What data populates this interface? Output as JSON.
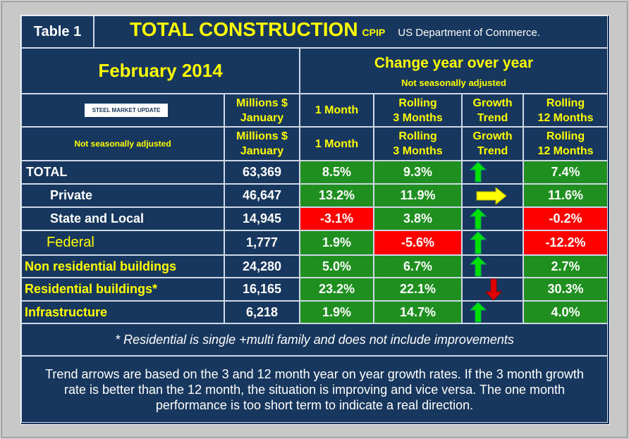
{
  "header": {
    "table_label": "Table 1",
    "title": "TOTAL CONSTRUCTION",
    "title_suffix": "CPIP",
    "source": "US Department of Commerce."
  },
  "period": "February 2014",
  "change_heading": "Change year over year",
  "change_subheading": "Not seasonally adjusted",
  "table": {
    "header_rows": [
      [
        "STEEL MARKET UPDATE",
        "Millions $\nJanuary",
        "1 Month",
        "Rolling\n3 Months",
        "Growth\nTrend",
        "Rolling\n12 Months"
      ],
      [
        "Not seasonally adjusted",
        "Millions $\nJanuary",
        "1 Month",
        "Rolling\n3 Months",
        "Growth\nTrend",
        "Rolling\n12 Months"
      ]
    ],
    "rows": [
      [
        "TOTAL",
        "63,369",
        "8.5%",
        "9.3%",
        "7.4%"
      ],
      [
        "Private",
        "46,647",
        "13.2%",
        "11.9%",
        "11.6%"
      ],
      [
        "State and Local",
        "14,945",
        "-3.1%",
        "3.8%",
        "-0.2%"
      ],
      [
        "Federal",
        "1,777",
        "1.9%",
        "-5.6%",
        "-12.2%"
      ],
      [
        "Non residential buildings",
        "24,280",
        "5.0%",
        "6.7%",
        "2.7%"
      ],
      [
        "Residential buildings*",
        "16,165",
        "23.2%",
        "22.1%",
        "30.3%"
      ],
      [
        "Infrastructure",
        "6,218",
        "1.9%",
        "14.7%",
        "4.0%"
      ]
    ]
  },
  "footnote": "* Residential is single +multi family and does not include improvements",
  "trend_note": "Trend arrows are based on the 3 and 12 month year on year growth rates. If the 3 month growth rate is better than the 12 month, the situation is improving and vice versa. The one month performance is too short term to indicate a real direction."
}
